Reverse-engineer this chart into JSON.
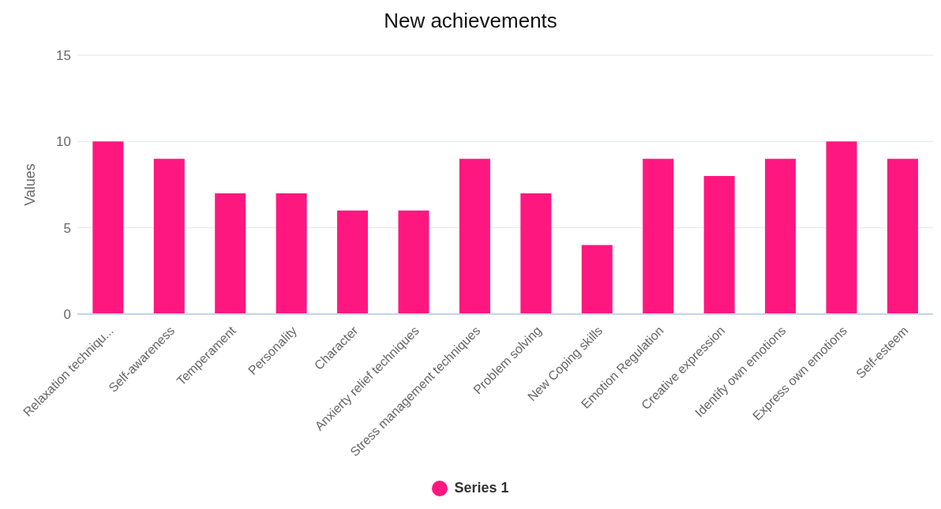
{
  "chart_data": {
    "type": "bar",
    "title": "New achievements",
    "ylabel": "Values",
    "categories": [
      "Relaxation techniqu...",
      "Self-awareness",
      "Temperament",
      "Personality",
      "Character",
      "Anxierty relief techniques",
      "Stress management techniques",
      "Problem solving",
      "New Coping skills",
      "Emotion Regulation",
      "Creative expression",
      "Identify own emotions",
      "Express own emotions",
      "Self-esteem"
    ],
    "series": [
      {
        "name": "Series 1",
        "color": "#ff1780",
        "values": [
          10,
          9,
          7,
          7,
          6,
          6,
          9,
          7,
          4,
          9,
          8,
          9,
          10,
          9
        ]
      }
    ],
    "ylim": [
      0,
      15
    ],
    "yticks": [
      0,
      5,
      10,
      15
    ],
    "grid": "y",
    "legend": "bottom"
  }
}
